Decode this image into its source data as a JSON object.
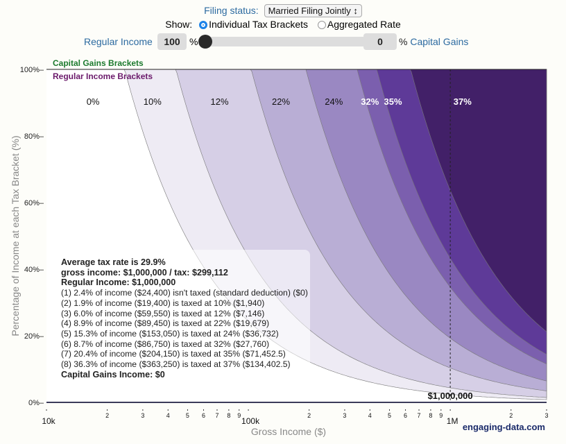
{
  "controls": {
    "filing_status_label": "Filing status:",
    "filing_status_value": "Married Filing Jointly",
    "show_label": "Show:",
    "show_options": [
      {
        "label": "Individual Tax Brackets",
        "selected": true
      },
      {
        "label": "Aggregated Rate",
        "selected": false
      }
    ],
    "regular_income_label": "Regular Income",
    "regular_income_pct": "100",
    "capital_gains_pct": "0",
    "pct_sign": "%",
    "capital_gains_label": "% Capital Gains",
    "slider_value_capital_gains_pct": 0
  },
  "chart_data": {
    "type": "area",
    "title": "",
    "xlabel": "Gross Income ($)",
    "ylabel": "Percentage of Income at each Tax Bracket (%)",
    "xscale": "log",
    "xlim": [
      10000,
      3000000
    ],
    "ylim": [
      0,
      100
    ],
    "y_ticks": [
      "0%",
      "20%",
      "40%",
      "60%",
      "80%",
      "100%"
    ],
    "y_tick_values": [
      0,
      20,
      40,
      60,
      80,
      100
    ],
    "x_ticks": [
      {
        "value": 10000,
        "label": "10k",
        "major": true
      },
      {
        "value": 20000,
        "label": "2"
      },
      {
        "value": 30000,
        "label": "3"
      },
      {
        "value": 40000,
        "label": "4"
      },
      {
        "value": 50000,
        "label": "5"
      },
      {
        "value": 60000,
        "label": "6"
      },
      {
        "value": 70000,
        "label": "7"
      },
      {
        "value": 80000,
        "label": "8"
      },
      {
        "value": 90000,
        "label": "9"
      },
      {
        "value": 100000,
        "label": "100k",
        "major": true
      },
      {
        "value": 200000,
        "label": "2"
      },
      {
        "value": 300000,
        "label": "3"
      },
      {
        "value": 400000,
        "label": "4"
      },
      {
        "value": 500000,
        "label": "5"
      },
      {
        "value": 600000,
        "label": "6"
      },
      {
        "value": 700000,
        "label": "7"
      },
      {
        "value": 800000,
        "label": "8"
      },
      {
        "value": 900000,
        "label": "9"
      },
      {
        "value": 1000000,
        "label": "1M",
        "major": true
      },
      {
        "value": 2000000,
        "label": "2"
      },
      {
        "value": 3000000,
        "label": "3"
      }
    ],
    "series_labels": {
      "capital_gains": "Capital Gains Brackets",
      "regular_income": "Regular Income Brackets"
    },
    "brackets": [
      {
        "rate": "0%",
        "upper_threshold": 24400,
        "color": "#ffffff",
        "label_color": "#111"
      },
      {
        "rate": "10%",
        "upper_threshold": 43800,
        "color": "#eeebf4",
        "label_color": "#111"
      },
      {
        "rate": "12%",
        "upper_threshold": 103350,
        "color": "#d6cfe6",
        "label_color": "#111"
      },
      {
        "rate": "22%",
        "upper_threshold": 192800,
        "color": "#b9aed5",
        "label_color": "#111"
      },
      {
        "rate": "24%",
        "upper_threshold": 345850,
        "color": "#9a88c2",
        "label_color": "#111"
      },
      {
        "rate": "32%",
        "upper_threshold": 432600,
        "color": "#7b5fae",
        "label_color": "#fff"
      },
      {
        "rate": "35%",
        "upper_threshold": 636750,
        "color": "#5e3a98",
        "label_color": "#fff"
      },
      {
        "rate": "37%",
        "upper_threshold": null,
        "color": "#422068",
        "label_color": "#fff"
      }
    ],
    "bracket_label_x": [
      17000,
      33500,
      72000,
      145000,
      265000,
      400000,
      520000,
      1150000
    ],
    "marker": {
      "income": 1000000,
      "label": "$1,000,000"
    },
    "watermark": "engaging-data.com"
  },
  "tooltip": {
    "lines": [
      {
        "text": "Average tax rate is 29.9%",
        "bold": true
      },
      {
        "text": "gross income: $1,000,000 / tax: $299,112",
        "bold": true
      },
      {
        "text": "Regular Income: $1,000,000",
        "bold": true
      },
      {
        "text": "(1) 2.4% of income ($24,400) isn't taxed (standard deduction) ($0)",
        "bold": false
      },
      {
        "text": "(2) 1.9% of income ($19,400) is taxed at 10% ($1,940)",
        "bold": false
      },
      {
        "text": "(3) 6.0% of income ($59,550) is taxed at 12% ($7,146)",
        "bold": false
      },
      {
        "text": "(4) 8.9% of income ($89,450) is taxed at 22% ($19,679)",
        "bold": false
      },
      {
        "text": "(5) 15.3% of income ($153,050) is taxed at 24% ($36,732)",
        "bold": false
      },
      {
        "text": "(6) 8.7% of income ($86,750) is taxed at 32% ($27,760)",
        "bold": false
      },
      {
        "text": "(7) 20.4% of income ($204,150) is taxed at 35% ($71,452.5)",
        "bold": false
      },
      {
        "text": "(8) 36.3% of income ($363,250) is taxed at 37% ($134,402.5)",
        "bold": false
      },
      {
        "text": "Capital Gains Income: $0",
        "bold": true
      }
    ]
  }
}
